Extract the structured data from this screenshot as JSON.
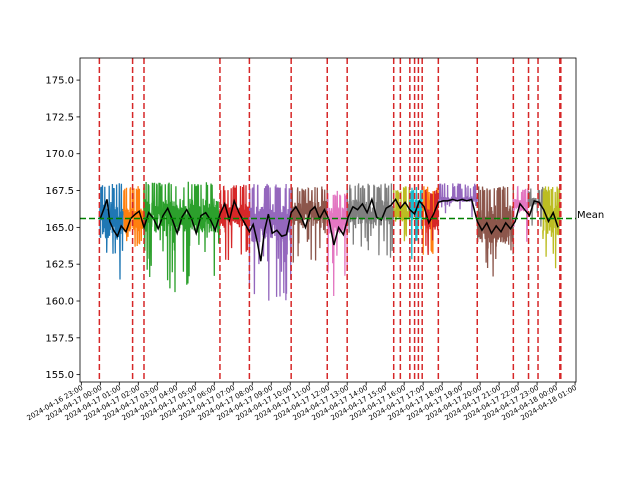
{
  "chart_data": {
    "type": "line",
    "title": "",
    "xlabel": "",
    "ylabel": "",
    "ylim": [
      154.5,
      176.5
    ],
    "y_ticks": [
      155.0,
      157.5,
      160.0,
      162.5,
      165.0,
      167.5,
      170.0,
      172.5,
      175.0
    ],
    "y_tick_labels": [
      "155.0",
      "157.5",
      "160.0",
      "162.5",
      "165.0",
      "167.5",
      "170.0",
      "172.5",
      "175.0"
    ],
    "x_start": "2024-04-16 23:00",
    "x_step_hours": 1,
    "xlim_hours": [
      -0.07,
      26.05
    ],
    "x_tick_labels": [
      "2024-04-16 23:00",
      "2024-04-17 00:00",
      "2024-04-17 01:00",
      "2024-04-17 02:00",
      "2024-04-17 03:00",
      "2024-04-17 04:00",
      "2024-04-17 05:00",
      "2024-04-17 06:00",
      "2024-04-17 07:00",
      "2024-04-17 08:00",
      "2024-04-17 09:00",
      "2024-04-17 10:00",
      "2024-04-17 11:00",
      "2024-04-17 12:00",
      "2024-04-17 13:00",
      "2024-04-17 14:00",
      "2024-04-17 15:00",
      "2024-04-17 16:00",
      "2024-04-17 17:00",
      "2024-04-17 18:00",
      "2024-04-17 19:00",
      "2024-04-17 20:00",
      "2024-04-17 21:00",
      "2024-04-17 22:00",
      "2024-04-17 23:00",
      "2024-04-18 00:00",
      "2024-04-18 01:00"
    ],
    "mean_line": {
      "value": 165.6,
      "label": "Mean",
      "color": "#008000",
      "style": "dashed"
    },
    "segment_boundaries_hours": [
      0.95,
      2.7,
      3.3,
      7.3,
      8.85,
      11.05,
      12.95,
      14.0,
      16.45,
      16.8,
      17.3,
      17.55,
      17.75,
      17.95,
      18.8,
      20.85,
      22.75,
      23.55,
      24.05,
      25.2,
      25.25
    ],
    "boundary_color": "#d62728",
    "segments": [
      {
        "start": 0.95,
        "end": 2.2,
        "color": "#1f77b4",
        "level": 165.5,
        "low": 160.5,
        "high": 168.0,
        "spread": 0.55
      },
      {
        "start": 2.2,
        "end": 3.3,
        "color": "#ff7f0e",
        "level": 165.5,
        "low": 163.5,
        "high": 167.8,
        "spread": 0.35
      },
      {
        "start": 3.3,
        "end": 7.3,
        "color": "#2ca02c",
        "level": 165.8,
        "low": 160.6,
        "high": 168.1,
        "spread": 0.5
      },
      {
        "start": 7.3,
        "end": 8.85,
        "color": "#d62728",
        "level": 165.8,
        "low": 162.7,
        "high": 167.9,
        "spread": 0.4
      },
      {
        "start": 8.85,
        "end": 11.05,
        "color": "#9467bd",
        "level": 165.3,
        "low": 160.0,
        "high": 168.0,
        "spread": 0.5
      },
      {
        "start": 11.05,
        "end": 12.95,
        "color": "#8c564b",
        "level": 166.0,
        "low": 162.5,
        "high": 167.8,
        "spread": 0.45
      },
      {
        "start": 12.95,
        "end": 14.0,
        "color": "#e377c2",
        "level": 165.5,
        "low": 160.0,
        "high": 167.5,
        "spread": 0.5
      },
      {
        "start": 14.0,
        "end": 16.45,
        "color": "#7f7f7f",
        "level": 166.0,
        "low": 162.7,
        "high": 168.0,
        "spread": 0.45
      },
      {
        "start": 16.45,
        "end": 17.3,
        "color": "#bcbd22",
        "level": 166.0,
        "low": 163.5,
        "high": 167.8,
        "spread": 0.35
      },
      {
        "start": 17.3,
        "end": 17.95,
        "color": "#17becf",
        "level": 166.2,
        "low": 162.3,
        "high": 167.8,
        "spread": 0.45
      },
      {
        "start": 17.95,
        "end": 18.8,
        "color": "#ff7f0e",
        "level": 166.5,
        "low": 163.0,
        "high": 167.8,
        "spread": 0.35
      },
      {
        "start": 18.8,
        "end": 20.85,
        "color": "#9467bd",
        "level": 166.9,
        "low": 165.6,
        "high": 168.0,
        "spread": 0.15
      },
      {
        "start": 20.85,
        "end": 22.75,
        "color": "#8c564b",
        "level": 165.2,
        "low": 161.6,
        "high": 167.8,
        "spread": 0.5
      },
      {
        "start": 22.75,
        "end": 23.55,
        "color": "#e377c2",
        "level": 166.5,
        "low": 162.8,
        "high": 167.8,
        "spread": 0.35
      },
      {
        "start": 23.55,
        "end": 24.3,
        "color": "#7f7f7f",
        "level": 166.7,
        "low": 164.5,
        "high": 167.8,
        "spread": 0.3
      },
      {
        "start": 24.3,
        "end": 25.2,
        "color": "#bcbd22",
        "level": 165.5,
        "low": 162.0,
        "high": 167.8,
        "spread": 0.5
      },
      {
        "start": 18.1,
        "end": 18.8,
        "color": "#d62728",
        "level": 165.5,
        "low": 163.0,
        "high": 167.6,
        "spread": 0.4
      }
    ],
    "rolling_mean": {
      "color": "#000000",
      "x_hours": [
        1.0,
        1.2,
        1.35,
        1.5,
        1.7,
        1.9,
        2.1,
        2.35,
        2.6,
        2.85,
        3.05,
        3.3,
        3.55,
        3.8,
        4.05,
        4.3,
        4.55,
        4.8,
        5.05,
        5.3,
        5.55,
        5.8,
        6.05,
        6.3,
        6.55,
        6.8,
        7.05,
        7.3,
        7.55,
        7.8,
        8.05,
        8.3,
        8.55,
        8.85,
        9.05,
        9.25,
        9.45,
        9.65,
        9.85,
        10.05,
        10.3,
        10.55,
        10.8,
        11.05,
        11.3,
        11.55,
        11.8,
        12.05,
        12.3,
        12.55,
        12.8,
        13.05,
        13.3,
        13.55,
        13.8,
        14.05,
        14.3,
        14.55,
        14.8,
        15.05,
        15.3,
        15.55,
        15.8,
        16.05,
        16.3,
        16.55,
        16.8,
        17.05,
        17.3,
        17.55,
        17.8,
        18.05,
        18.3,
        18.55,
        18.8,
        19.05,
        19.3,
        19.55,
        19.8,
        20.05,
        20.3,
        20.55,
        20.85,
        21.1,
        21.35,
        21.6,
        21.85,
        22.1,
        22.35,
        22.6,
        22.85,
        23.1,
        23.35,
        23.6,
        23.85,
        24.1,
        24.35,
        24.6,
        24.85,
        25.1
      ],
      "y": [
        165.6,
        166.3,
        166.9,
        165.4,
        164.8,
        164.4,
        165.1,
        164.7,
        165.6,
        165.9,
        166.1,
        165.0,
        166.0,
        165.6,
        164.9,
        165.8,
        166.3,
        165.5,
        164.6,
        165.7,
        166.2,
        165.6,
        164.6,
        165.8,
        166.0,
        165.5,
        164.8,
        165.9,
        166.6,
        165.5,
        166.8,
        166.0,
        165.4,
        164.7,
        165.2,
        164.1,
        162.7,
        164.8,
        165.9,
        164.6,
        164.8,
        164.4,
        164.5,
        166.0,
        166.4,
        165.8,
        165.0,
        166.1,
        166.4,
        165.6,
        166.2,
        165.5,
        163.8,
        165.0,
        164.5,
        165.7,
        166.4,
        166.2,
        166.6,
        166.0,
        166.9,
        165.7,
        165.5,
        166.3,
        166.5,
        166.9,
        166.3,
        166.7,
        166.2,
        165.9,
        166.8,
        166.4,
        165.3,
        165.9,
        166.7,
        166.8,
        166.8,
        166.9,
        166.8,
        166.9,
        166.8,
        166.9,
        165.4,
        164.8,
        165.3,
        164.6,
        165.1,
        164.7,
        165.3,
        164.9,
        165.4,
        166.6,
        166.2,
        165.8,
        166.8,
        166.7,
        166.2,
        165.4,
        166.0,
        165.0
      ]
    }
  }
}
